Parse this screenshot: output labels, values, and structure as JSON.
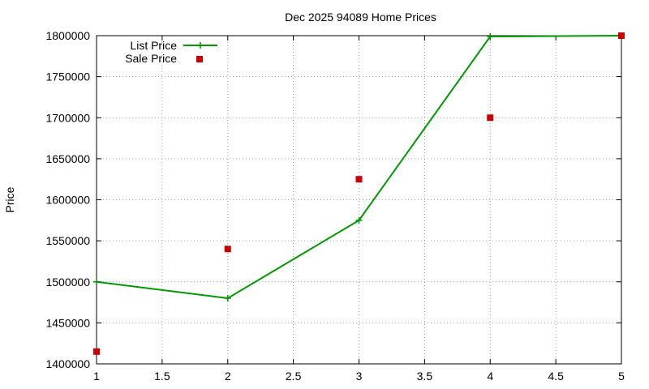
{
  "chart_data": {
    "type": "line",
    "title": "Dec 2025 94089 Home Prices",
    "xlabel": "",
    "ylabel": "Price",
    "xlim": [
      1,
      5
    ],
    "ylim": [
      1400000,
      1800000
    ],
    "xticks": [
      1,
      1.5,
      2,
      2.5,
      3,
      3.5,
      4,
      4.5,
      5
    ],
    "xtick_labels": [
      "1",
      "1.5",
      "2",
      "2.5",
      "3",
      "3.5",
      "4",
      "4.5",
      "5"
    ],
    "yticks": [
      1400000,
      1450000,
      1500000,
      1550000,
      1600000,
      1650000,
      1700000,
      1750000,
      1800000
    ],
    "ytick_labels": [
      "1400000",
      "1450000",
      "1500000",
      "1550000",
      "1600000",
      "1650000",
      "1700000",
      "1750000",
      "1800000"
    ],
    "grid": true,
    "legend_position": "top-left",
    "series": [
      {
        "name": "List Price",
        "style": "linespoints",
        "color": "#009900",
        "x": [
          1,
          2,
          3,
          4,
          5
        ],
        "y": [
          1500000,
          1480000,
          1575000,
          1799000,
          1800000
        ]
      },
      {
        "name": "Sale Price",
        "style": "points",
        "color": "#cc0000",
        "x": [
          1,
          2,
          3,
          4,
          5
        ],
        "y": [
          1415000,
          1540000,
          1625000,
          1700000,
          1800000
        ]
      }
    ]
  }
}
